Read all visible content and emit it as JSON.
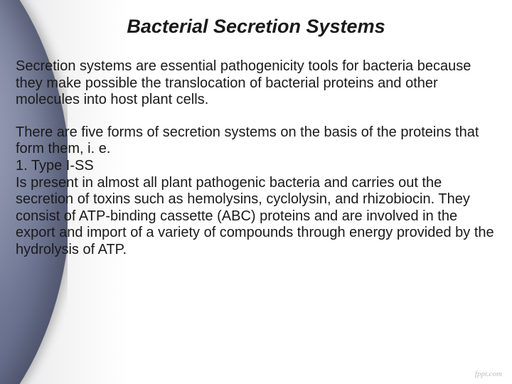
{
  "slide": {
    "title": "Bacterial Secretion Systems",
    "title_fontsize": 27,
    "title_color": "#1a1a1a",
    "title_weight": "bold",
    "title_style": "italic",
    "body_fontsize": 20,
    "body_color": "#1a1a1a",
    "background_gradient": [
      "#e8e8ea",
      "#ffffff"
    ],
    "side_accent_colors": [
      "#b8bccc",
      "#6e7694",
      "#4a506e"
    ],
    "paragraphs": [
      "Secretion systems are essential pathogenicity tools for bacteria because they make possible the translocation of bacterial proteins and other molecules into host plant cells.",
      "There are five forms of secretion systems on the basis of the proteins that form them, i. e.\n1. Type I-SS\nIs present in almost all plant pathogenic bacteria and carries out the secretion of toxins such as hemolysins, cyclolysin, and rhizobiocin. They consist of ATP-binding cassette (ABC) proteins and are involved in the export and import of a variety of compounds through energy provided by the hydrolysis of ATP."
    ],
    "watermark": "fppt.com",
    "watermark_color": "#bdbdbd"
  }
}
